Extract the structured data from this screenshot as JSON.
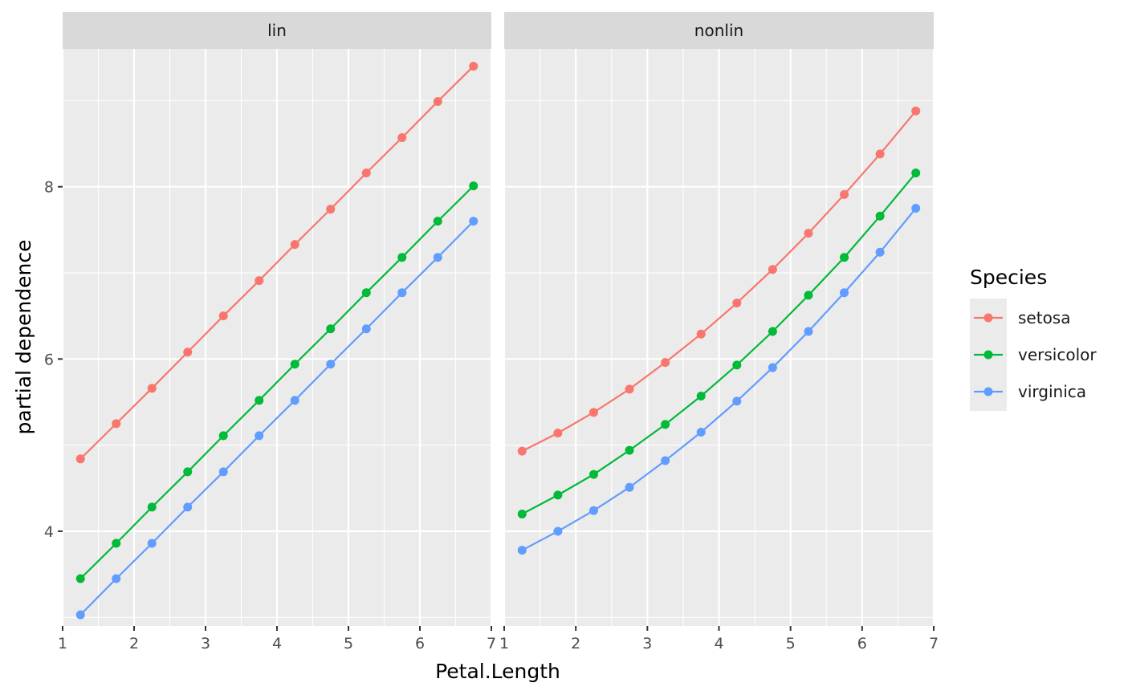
{
  "chart_data": {
    "type": "line",
    "xlabel": "Petal.Length",
    "ylabel": "partial dependence",
    "xlim": [
      1,
      7
    ],
    "ylim": [
      2.9,
      9.6
    ],
    "x_ticks": [
      1,
      2,
      3,
      4,
      5,
      6,
      7
    ],
    "y_ticks": [
      4,
      6,
      8
    ],
    "grid": true,
    "legend": {
      "title": "Species",
      "position": "right",
      "entries": [
        "setosa",
        "versicolor",
        "virginica"
      ]
    },
    "colors": {
      "setosa": "#F8766D",
      "versicolor": "#00BA38",
      "virginica": "#619CFF"
    },
    "x": [
      1.25,
      1.75,
      2.25,
      2.75,
      3.25,
      3.75,
      4.25,
      4.75,
      5.25,
      5.75,
      6.25,
      6.75
    ],
    "panels": [
      {
        "title": "lin",
        "series": [
          {
            "name": "setosa",
            "values": [
              4.84,
              5.25,
              5.66,
              6.08,
              6.5,
              6.91,
              7.33,
              7.74,
              8.16,
              8.57,
              8.99,
              9.4
            ]
          },
          {
            "name": "versicolor",
            "values": [
              3.45,
              3.86,
              4.28,
              4.69,
              5.11,
              5.52,
              5.94,
              6.35,
              6.77,
              7.18,
              7.6,
              8.01
            ]
          },
          {
            "name": "virginica",
            "values": [
              3.03,
              3.45,
              3.86,
              4.28,
              4.69,
              5.11,
              5.52,
              5.94,
              6.35,
              6.77,
              7.18,
              7.6
            ]
          }
        ]
      },
      {
        "title": "nonlin",
        "series": [
          {
            "name": "setosa",
            "values": [
              4.93,
              5.14,
              5.38,
              5.65,
              5.96,
              6.29,
              6.65,
              7.04,
              7.46,
              7.91,
              8.38,
              8.88
            ]
          },
          {
            "name": "versicolor",
            "values": [
              4.2,
              4.42,
              4.66,
              4.94,
              5.24,
              5.57,
              5.93,
              6.32,
              6.74,
              7.18,
              7.66,
              8.16
            ]
          },
          {
            "name": "virginica",
            "values": [
              3.78,
              4.0,
              4.24,
              4.51,
              4.82,
              5.15,
              5.51,
              5.9,
              6.32,
              6.77,
              7.24,
              7.75
            ]
          }
        ]
      }
    ]
  }
}
